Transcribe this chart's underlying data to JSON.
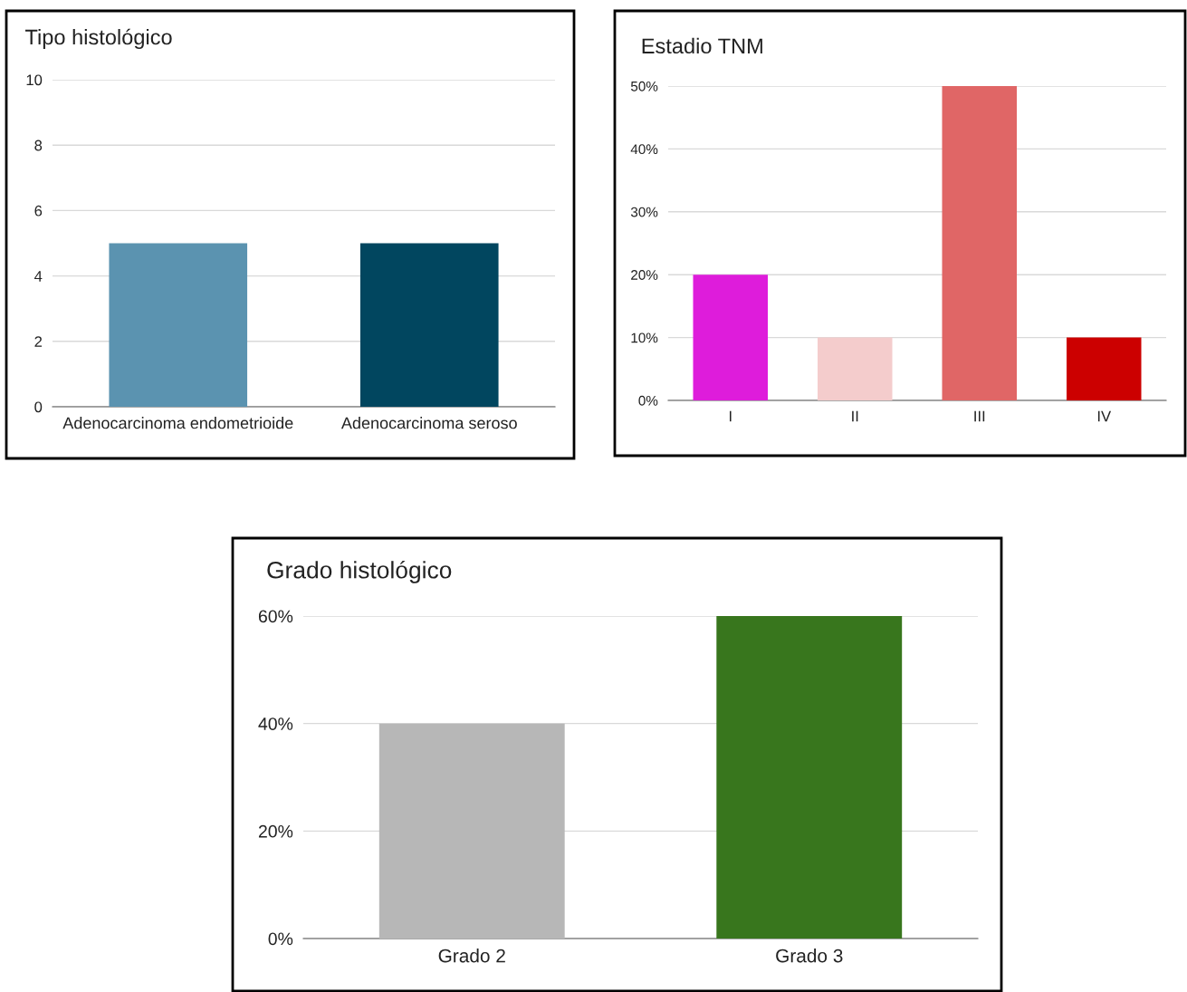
{
  "chart_data": [
    {
      "type": "bar",
      "title": "Tipo histológico",
      "categories": [
        "Adenocarcinoma endometrioide",
        "Adenocarcinoma seroso"
      ],
      "values": [
        5,
        5
      ],
      "colors": [
        "#5b93b0",
        "#01465f"
      ],
      "ylim": [
        0,
        10
      ],
      "yticks": [
        0,
        2,
        4,
        6,
        8,
        10
      ],
      "grid": "y",
      "legend": false
    },
    {
      "type": "bar",
      "title": "Estadio TNM",
      "categories": [
        "I",
        "II",
        "III",
        "IV"
      ],
      "values": [
        20,
        10,
        50,
        10
      ],
      "colors": [
        "#de1cdb",
        "#f4cccc",
        "#e06666",
        "#cc0000"
      ],
      "ylim": [
        0,
        50
      ],
      "yticks": [
        {
          "value": 0,
          "label": "0%"
        },
        {
          "value": 10,
          "label": "10%"
        },
        {
          "value": 20,
          "label": "20%"
        },
        {
          "value": 30,
          "label": "30%"
        },
        {
          "value": 40,
          "label": "40%"
        },
        {
          "value": 50,
          "label": "50%"
        }
      ],
      "grid": "y",
      "legend": false
    },
    {
      "type": "bar",
      "title": "Grado histológico",
      "categories": [
        "Grado 2",
        "Grado 3"
      ],
      "values": [
        40,
        60
      ],
      "colors": [
        "#b7b7b7",
        "#38761d"
      ],
      "ylim": [
        0,
        60
      ],
      "yticks": [
        {
          "value": 0,
          "label": "0%"
        },
        {
          "value": 20,
          "label": "20%"
        },
        {
          "value": 40,
          "label": "40%"
        },
        {
          "value": 60,
          "label": "60%"
        }
      ],
      "grid": "y",
      "legend": false
    }
  ]
}
